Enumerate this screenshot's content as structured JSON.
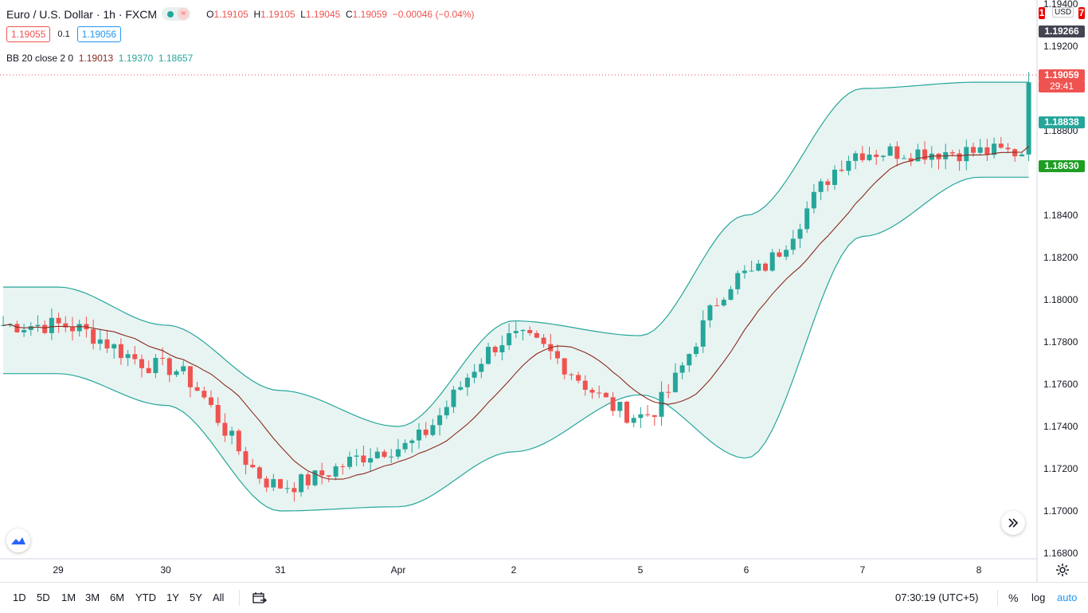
{
  "header": {
    "title": "Euro / U.S. Dollar · 1h · FXCM",
    "status_icon": "market-open-dot",
    "wave_icon": "≈",
    "ohlc": {
      "o_label": "O",
      "o": "1.19105",
      "h_label": "H",
      "h": "1.19105",
      "l_label": "L",
      "l": "1.19045",
      "c_label": "C",
      "c": "1.19059",
      "change": "−0.00046 (−0.04%)"
    }
  },
  "quote": {
    "bid": "1.19055",
    "spread": "0.1",
    "ask": "1.19056"
  },
  "indicator": {
    "label": "BB 20 close 2 0",
    "basis": "1.19013",
    "upper": "1.19370",
    "lower": "1.18657"
  },
  "price_axis": {
    "currency": "USD",
    "ticks": [
      "1.19400",
      "1.19200",
      "1.18800",
      "1.18400",
      "1.18200",
      "1.18000",
      "1.17800",
      "1.17600",
      "1.17400",
      "1.17200",
      "1.17000",
      "1.16800"
    ],
    "tags": [
      {
        "text": "1.19266",
        "color": "#434651"
      },
      {
        "text": "1.19059",
        "color": "#ef5350"
      },
      {
        "text": "29:41",
        "color": "#ef5350"
      },
      {
        "text": "1.18838",
        "color": "#26a69a"
      },
      {
        "text": "1.18630",
        "color": "#1f9e23"
      }
    ],
    "clipped_tag": {
      "left": "1",
      "right": "7"
    }
  },
  "time_axis": {
    "labels": [
      "29",
      "30",
      "31",
      "Apr",
      "2",
      "5",
      "6",
      "7",
      "8"
    ]
  },
  "bottom_toolbar": {
    "timeframes": [
      "1D",
      "5D",
      "1M",
      "3M",
      "6M",
      "YTD",
      "1Y",
      "5Y",
      "All"
    ],
    "clock": "07:30:19 (UTC+5)",
    "percent": "%",
    "log": "log",
    "auto": "auto"
  },
  "colors": {
    "up": "#26a69a",
    "down": "#ef5350",
    "basis": "#8b2a1e",
    "band": "#26a69a",
    "band_fill": "#e8f4f2"
  },
  "chart_data": {
    "type": "candlestick",
    "symbol": "EUR/USD",
    "interval": "1h",
    "ylim": [
      1.1675,
      1.195
    ],
    "last_price": 1.19059,
    "anchors": [
      {
        "date": "Mar 29",
        "close": 1.1788,
        "upper": 1.1806,
        "lower": 1.1765
      },
      {
        "date": "Mar 30",
        "close": 1.1768,
        "upper": 1.1788,
        "lower": 1.175
      },
      {
        "date": "Mar 31",
        "close": 1.1712,
        "upper": 1.1757,
        "lower": 1.17
      },
      {
        "date": "Apr",
        "close": 1.173,
        "upper": 1.174,
        "lower": 1.1702
      },
      {
        "date": "Apr 2",
        "close": 1.1782,
        "upper": 1.179,
        "lower": 1.1728
      },
      {
        "date": "Apr 5",
        "close": 1.1745,
        "upper": 1.1783,
        "lower": 1.1755
      },
      {
        "date": "Apr 6",
        "close": 1.1812,
        "upper": 1.184,
        "lower": 1.1725
      },
      {
        "date": "Apr 7",
        "close": 1.187,
        "upper": 1.19,
        "lower": 1.183
      },
      {
        "date": "Apr 8",
        "close": 1.187,
        "upper": 1.1903,
        "lower": 1.1858
      }
    ]
  }
}
